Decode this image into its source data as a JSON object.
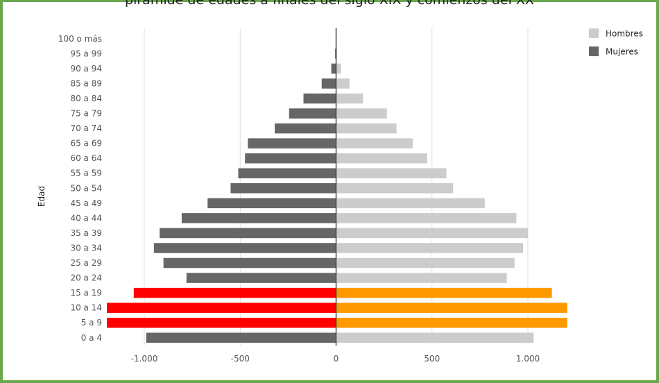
{
  "chart_data": {
    "type": "bar",
    "orientation": "horizontal",
    "title": "pirámide de edades a finales del siglo XIX y comienzos del XX",
    "ylabel": "Edad",
    "xlabel": "",
    "xlim": [
      -1200,
      1200
    ],
    "x_ticks": [
      -1000,
      -500,
      0,
      500,
      1000
    ],
    "x_tick_labels": [
      "-1.000",
      "-500",
      "0",
      "500",
      "1.000"
    ],
    "grid": true,
    "legend_position": "top-right",
    "categories": [
      "0 a 4",
      "5 a 9",
      "10 a 14",
      "15 a 19",
      "20 a 24",
      "25 a 29",
      "30 a 34",
      "35 a 39",
      "40 a 44",
      "45 a 49",
      "50 a 54",
      "55 a 59",
      "60 a 64",
      "65 a 69",
      "70 a 74",
      "75 a 79",
      "80 a 84",
      "85 a 89",
      "90 a 94",
      "95 a 99",
      "100 o más"
    ],
    "series": [
      {
        "name": "Hombres",
        "color": "#cccccc",
        "values": [
          1030,
          1205,
          1205,
          1125,
          890,
          930,
          975,
          1000,
          940,
          775,
          610,
          575,
          475,
          400,
          315,
          265,
          140,
          70,
          25,
          5,
          0
        ],
        "highlight": {
          "indices": [
            1,
            2,
            3
          ],
          "color": "#ff9900"
        }
      },
      {
        "name": "Mujeres",
        "color": "#666666",
        "values": [
          -990,
          -1195,
          -1195,
          -1055,
          -780,
          -900,
          -950,
          -920,
          -805,
          -670,
          -550,
          -510,
          -475,
          -460,
          -320,
          -245,
          -170,
          -75,
          -25,
          -5,
          0
        ],
        "highlight": {
          "indices": [
            1,
            2,
            3
          ],
          "color": "#ff0000"
        }
      }
    ]
  }
}
